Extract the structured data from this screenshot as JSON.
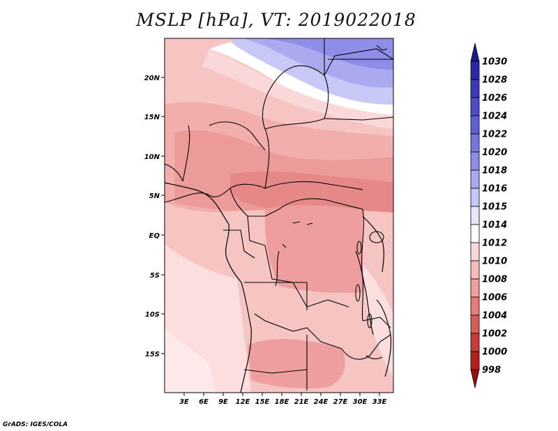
{
  "title": "MSLP [hPa], VT: 2019022018",
  "credit": "GrADS: IGES/COLA",
  "map": {
    "lat_labels": [
      "20N",
      "15N",
      "10N",
      "5N",
      "EQ",
      "5S",
      "10S",
      "15S"
    ],
    "lon_labels": [
      "3E",
      "6E",
      "9E",
      "12E",
      "15E",
      "18E",
      "21E",
      "24E",
      "27E",
      "30E",
      "33E"
    ]
  },
  "colorbar": {
    "labels": [
      "1030",
      "1028",
      "1026",
      "1024",
      "1022",
      "1020",
      "1018",
      "1016",
      "1015",
      "1014",
      "1012",
      "1010",
      "1008",
      "1006",
      "1004",
      "1002",
      "1000",
      "998"
    ],
    "colors": [
      "#1a1a8c",
      "#2a2aa6",
      "#3a3ab8",
      "#4c4cc8",
      "#6060d6",
      "#7676e0",
      "#8e8ee8",
      "#aaaaf0",
      "#c8c8f6",
      "#e6e6fb",
      "#ffffff",
      "#fbd8d8",
      "#f6bcbc",
      "#ee9e9e",
      "#e47c7c",
      "#d85c5c",
      "#c83c3c",
      "#b42020",
      "#961010"
    ]
  }
}
